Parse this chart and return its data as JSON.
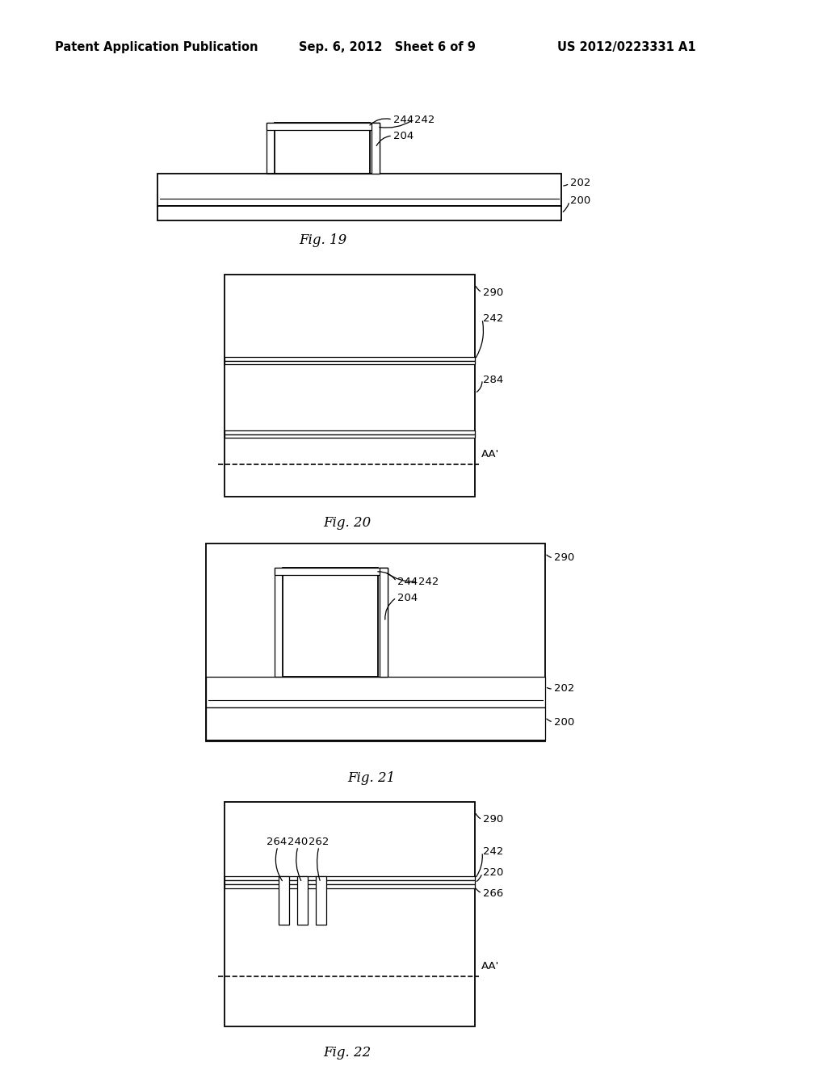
{
  "bg_color": "#ffffff",
  "header_left": "Patent Application Publication",
  "header_mid": "Sep. 6, 2012   Sheet 6 of 9",
  "header_right": "US 2012/0223331 A1",
  "fig19_caption": "Fig. 19",
  "fig20_caption": "Fig. 20",
  "fig21_caption": "Fig. 21",
  "fig22_caption": "Fig. 22"
}
